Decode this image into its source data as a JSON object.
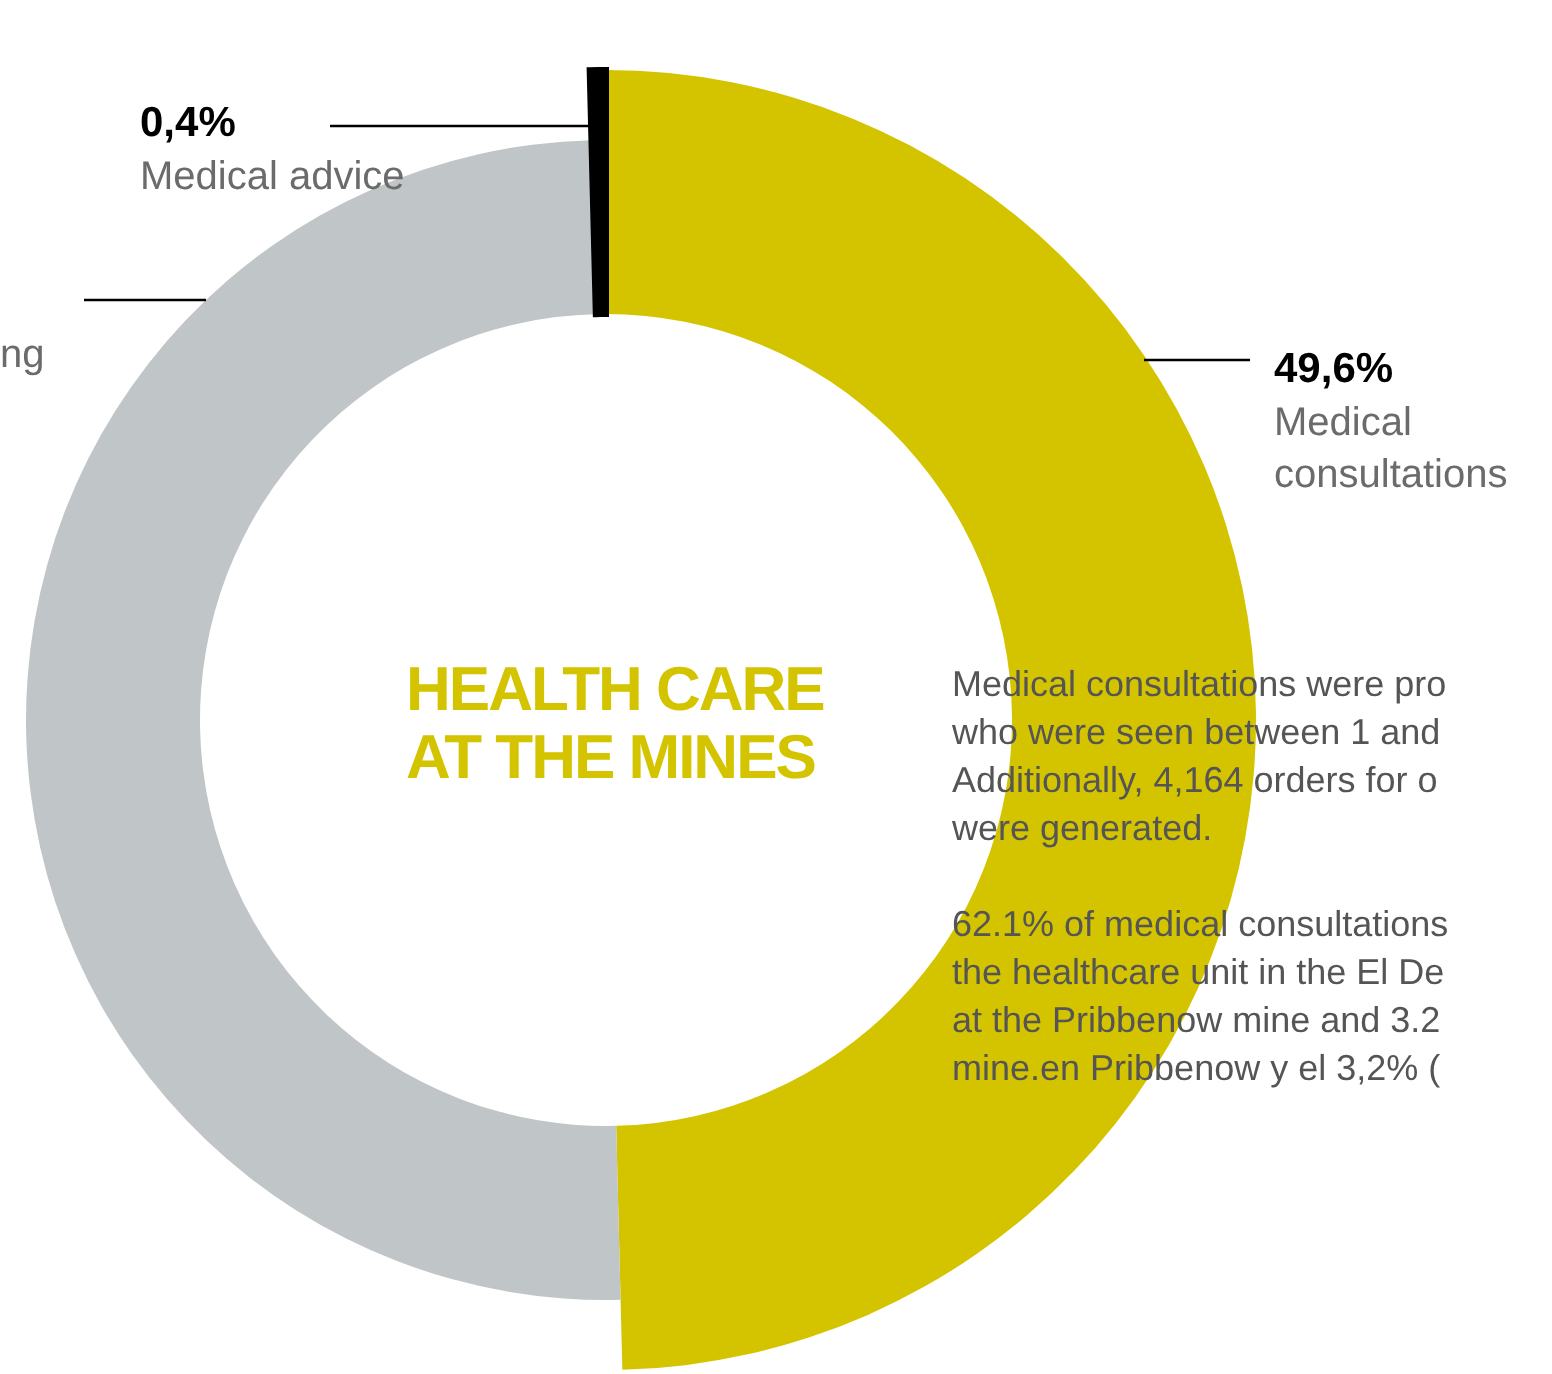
{
  "chart_data": {
    "type": "donut",
    "title": "HEALTH CARE AT THE MINES",
    "categories": [
      "Medical consultations",
      "ng",
      "Medical advice"
    ],
    "values": [
      49.6,
      50.0,
      0.4
    ],
    "colors": [
      "#d4c400",
      "#c0c6c7",
      "#000000"
    ],
    "value_labels": [
      "49,6%",
      null,
      "0,4%"
    ],
    "legend": false,
    "annotations": [
      "Medical consultations were pro",
      "who were seen between 1 and",
      "Additionally, 4,164 orders for o",
      "were generated.",
      "62.1% of medical consultations",
      "the healthcare unit in the El De",
      "at the Pribbenow mine and 3.2",
      "mine.en Pribbenow y el 3,2% ("
    ]
  }
}
